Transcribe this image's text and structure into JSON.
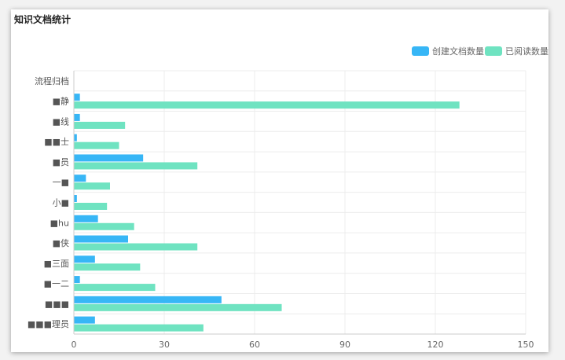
{
  "card_title": "知识文档统计",
  "colors": {
    "created": "#37b6f6",
    "read": "#6fe3c1"
  },
  "chart_data": {
    "type": "bar",
    "orientation": "horizontal",
    "title": "知识文档统计",
    "xlabel": "",
    "ylabel": "",
    "xlim": [
      0,
      150
    ],
    "xticks": [
      0,
      30,
      60,
      90,
      120,
      150
    ],
    "grid": true,
    "legend_position": "top-right",
    "categories": [
      "流程归档",
      "■静",
      "■线",
      "■■士",
      "■员",
      "一■",
      "小■",
      "■hu",
      "■侠",
      "■三面",
      "■一二",
      "■■■",
      "■■■理员"
    ],
    "series": [
      {
        "name": "创建文档数量",
        "values": [
          0,
          2,
          2,
          1,
          23,
          4,
          1,
          8,
          18,
          7,
          2,
          49,
          7
        ]
      },
      {
        "name": "已阅读数量",
        "values": [
          0,
          128,
          17,
          15,
          41,
          12,
          11,
          20,
          41,
          22,
          27,
          69,
          43
        ]
      }
    ]
  }
}
